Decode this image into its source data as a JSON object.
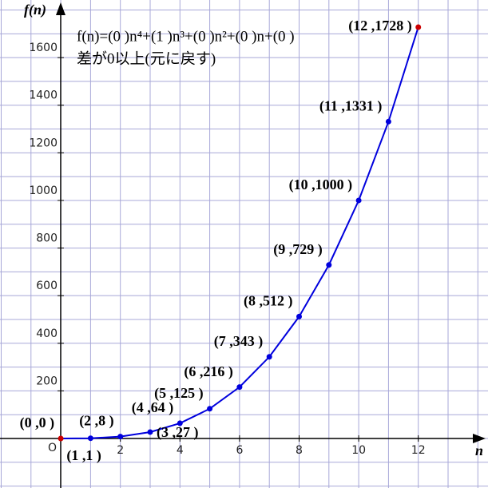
{
  "chart_data": {
    "type": "line",
    "formula": "f(n)=(0 )n⁴+(1 )n³+(0 )n²+(0 )n+(0 )",
    "note": "差が0以上(元に戻す)",
    "x_label": "n",
    "y_label": "f(n)",
    "origin_label": "O",
    "x": [
      0,
      1,
      2,
      3,
      4,
      5,
      6,
      7,
      8,
      9,
      10,
      11,
      12
    ],
    "series": [
      {
        "color": "#0000dd",
        "values": [
          0,
          1,
          8,
          27,
          64,
          125,
          216,
          343,
          512,
          729,
          1000,
          1331,
          1728
        ],
        "value_labels": [
          "(0 ,0 )",
          "(1 ,1 )",
          "(2 ,8 )",
          "(3 ,27 )",
          "(4 ,64 )",
          "(5 ,125 )",
          "(6 ,216 )",
          "(7 ,343 )",
          "(8 ,512 )",
          "(9 ,729 )",
          "(10 ,1000 )",
          "(11 ,1331 )",
          "(12 ,1728 )"
        ],
        "point_colors": [
          "#cc0000",
          "#0000dd",
          "#0000dd",
          "#0000dd",
          "#0000dd",
          "#0000dd",
          "#0000dd",
          "#0000dd",
          "#0000dd",
          "#0000dd",
          "#0000dd",
          "#0000dd",
          "#cc0000"
        ]
      }
    ],
    "xlim": [
      -2.04,
      14.34
    ],
    "ylim": [
      -208,
      1842
    ],
    "xticks": [
      2,
      4,
      6,
      8,
      10,
      12
    ],
    "yticks": [
      200,
      400,
      600,
      800,
      1000,
      1200,
      1400,
      1600
    ],
    "x_gridlines": [
      -2,
      -1,
      0,
      1,
      2,
      3,
      4,
      5,
      6,
      7,
      8,
      9,
      10,
      11,
      12,
      13,
      14
    ],
    "y_gridlines": [
      -200,
      -100,
      0,
      100,
      200,
      300,
      400,
      500,
      600,
      700,
      800,
      900,
      1000,
      1100,
      1200,
      1300,
      1400,
      1500,
      1600,
      1700,
      1800
    ],
    "grid_color": "#a8a8d8"
  }
}
